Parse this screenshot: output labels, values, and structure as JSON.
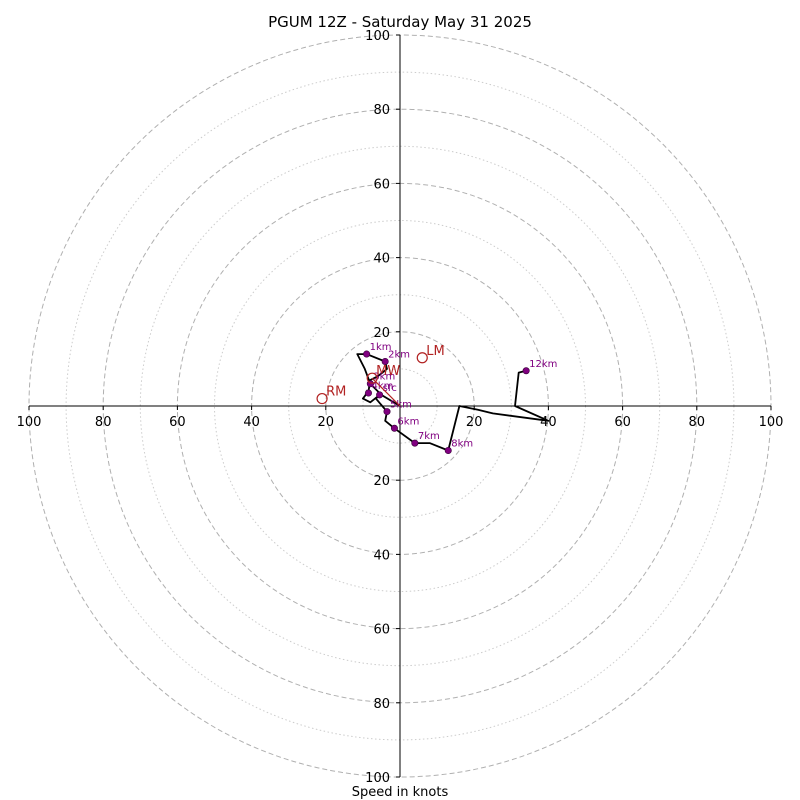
{
  "chart_data": {
    "type": "hodograph",
    "title": "PGUM 12Z - Saturday May 31 2025",
    "xlabel": "Speed in knots",
    "range": [
      -100,
      100
    ],
    "ring_ticks": [
      "100",
      "80",
      "60",
      "40",
      "20",
      "20",
      "40",
      "60",
      "80",
      "100"
    ],
    "y_ticks": [
      "100",
      "80",
      "60",
      "40",
      "20",
      "20",
      "40",
      "60",
      "80",
      "100"
    ],
    "major_rings": [
      20,
      40,
      60,
      80,
      100
    ],
    "minor_rings": [
      10,
      30,
      50,
      70,
      90
    ],
    "trace": [
      {
        "u": 0,
        "v": 0
      },
      {
        "u": -5,
        "v": 3
      },
      {
        "u": -8,
        "v": 6
      },
      {
        "u": -9.5,
        "v": 10
      },
      {
        "u": -11.5,
        "v": 14
      },
      {
        "u": -9,
        "v": 14
      },
      {
        "u": -4,
        "v": 12
      },
      {
        "u": -3.5,
        "v": 10
      },
      {
        "u": -6,
        "v": 8
      },
      {
        "u": -8,
        "v": 7
      },
      {
        "u": -8.5,
        "v": 4
      },
      {
        "u": -10,
        "v": 2
      },
      {
        "u": -8,
        "v": 1
      },
      {
        "u": -5.5,
        "v": 3
      },
      {
        "u": -6.5,
        "v": 2
      },
      {
        "u": -3.5,
        "v": -1.5
      },
      {
        "u": -4,
        "v": -4
      },
      {
        "u": -1.5,
        "v": -6
      },
      {
        "u": 4,
        "v": -10
      },
      {
        "u": 8,
        "v": -10
      },
      {
        "u": 13,
        "v": -12
      },
      {
        "u": 16,
        "v": 0
      },
      {
        "u": 21,
        "v": -1
      },
      {
        "u": 25,
        "v": -2
      },
      {
        "u": 40,
        "v": -4
      },
      {
        "u": 31,
        "v": 0
      },
      {
        "u": 32,
        "v": 9
      },
      {
        "u": 34,
        "v": 9.5
      }
    ],
    "height_markers": [
      {
        "label": "sfc",
        "u": -5.5,
        "v": 3
      },
      {
        "label": "1km",
        "u": -9,
        "v": 14
      },
      {
        "label": "2km",
        "u": -4,
        "v": 12
      },
      {
        "label": "3km",
        "u": -8,
        "v": 6
      },
      {
        "label": "4km",
        "u": -8.5,
        "v": 3.5
      },
      {
        "label": "5km",
        "u": -3.5,
        "v": -1.5
      },
      {
        "label": "6km",
        "u": -1.5,
        "v": -6
      },
      {
        "label": "7km",
        "u": 4,
        "v": -10
      },
      {
        "label": "8km",
        "u": 13,
        "v": -12
      },
      {
        "label": "12km",
        "u": 34,
        "v": 9.5
      }
    ],
    "motion_markers": [
      {
        "label": "RM",
        "u": -21,
        "v": 2
      },
      {
        "label": "LM",
        "u": 6,
        "v": 13
      },
      {
        "label": "MW",
        "u": -7.5,
        "v": 7.5
      }
    ],
    "colors": {
      "trace": "#000000",
      "height_marker": "#800080",
      "motion_marker": "#b22222",
      "grid": "#b0b0b0",
      "axis": "#000000"
    }
  }
}
